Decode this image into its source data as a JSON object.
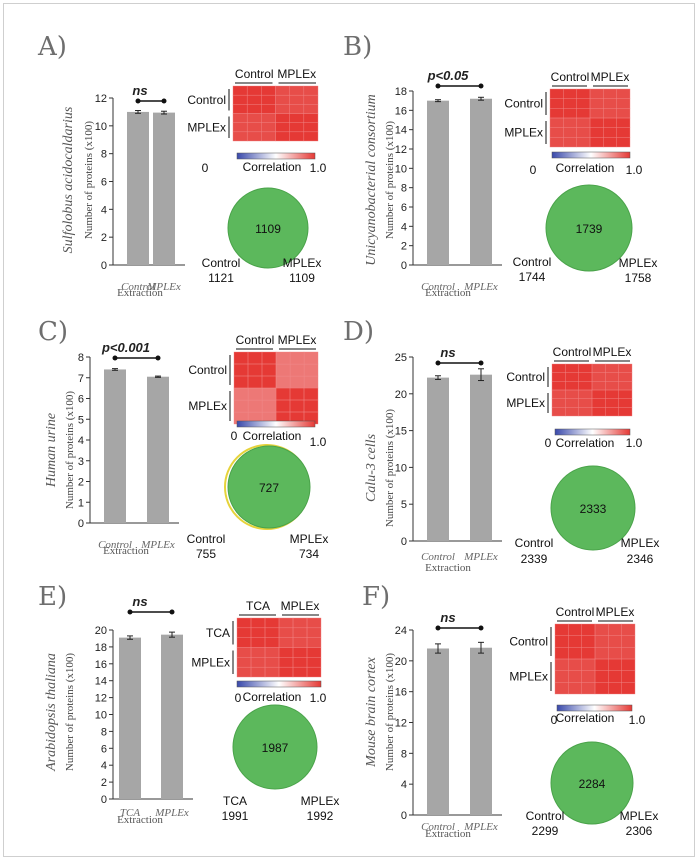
{
  "colors": {
    "bar": "#a6a6a6",
    "venn_fill": "#5cb85c",
    "venn_stroke": "#4aa34a",
    "heat_high": "#e53935",
    "heat_low": "#3949ab"
  },
  "chart_data": [
    {
      "type": "bar",
      "panel": "A)",
      "organism": "Sulfolobus acidocaldarius",
      "ylabel": "Number of proteins (x100)",
      "xlabel": "Extraction",
      "categories": [
        "Control",
        "MPLEx"
      ],
      "values": [
        11.0,
        10.95
      ],
      "errors": [
        0.1,
        0.1
      ],
      "ylim": [
        0,
        12
      ],
      "yticks": [
        "0",
        "2",
        "4",
        "6",
        "8",
        "10",
        "12"
      ],
      "significance": "ns",
      "heatmap": {
        "column_labels": [
          "Control",
          "MPLEx"
        ],
        "row_labels": [
          "Control",
          "MPLEx"
        ],
        "colorbar_min": "0",
        "colorbar_max": "1.0",
        "colorbar_label": "Correlation"
      },
      "venn": {
        "overlap": "1109",
        "left_label": "Control",
        "left_count": "1121",
        "right_label": "MPLEx",
        "right_count": "1109"
      }
    },
    {
      "type": "bar",
      "panel": "B)",
      "organism": "Unicyanobacterial consortium",
      "ylabel": "Number of proteins (x100)",
      "xlabel": "Extraction",
      "categories": [
        "Control",
        "MPLEx"
      ],
      "values": [
        17.0,
        17.2
      ],
      "errors": [
        0.1,
        0.15
      ],
      "ylim": [
        0,
        18
      ],
      "yticks": [
        "0",
        "2",
        "4",
        "6",
        "8",
        "10",
        "12",
        "14",
        "16",
        "18"
      ],
      "significance": "p<0.05",
      "heatmap": {
        "column_labels": [
          "Control",
          "MPLEx"
        ],
        "row_labels": [
          "Control",
          "MPLEx"
        ],
        "colorbar_min": "0",
        "colorbar_max": "1.0",
        "colorbar_label": "Correlation"
      },
      "venn": {
        "overlap": "1739",
        "left_label": "Control",
        "left_count": "1744",
        "right_label": "MPLEx",
        "right_count": "1758"
      }
    },
    {
      "type": "bar",
      "panel": "C)",
      "organism": "Human urine",
      "ylabel": "Number of proteins (x100)",
      "xlabel": "Extraction",
      "categories": [
        "Control",
        "MPLEx"
      ],
      "values": [
        7.4,
        7.05
      ],
      "errors": [
        0.04,
        0.03
      ],
      "ylim": [
        0,
        8
      ],
      "yticks": [
        "0",
        "1",
        "2",
        "3",
        "4",
        "5",
        "6",
        "7",
        "8"
      ],
      "significance": "p<0.001",
      "heatmap": {
        "column_labels": [
          "Control",
          "MPLEx"
        ],
        "row_labels": [
          "Control",
          "MPLEx"
        ],
        "colorbar_min": "0",
        "colorbar_max": "1.0",
        "colorbar_label": "Correlation"
      },
      "venn": {
        "overlap": "727",
        "left_label": "Control",
        "left_count": "755",
        "right_label": "MPLEx",
        "right_count": "734"
      }
    },
    {
      "type": "bar",
      "panel": "D)",
      "organism": "Calu-3 cells",
      "ylabel": "Number of proteins (x100)",
      "xlabel": "Extraction",
      "categories": [
        "Control",
        "MPLEx"
      ],
      "values": [
        22.2,
        22.6
      ],
      "errors": [
        0.25,
        0.8
      ],
      "ylim": [
        0,
        25
      ],
      "yticks": [
        "0",
        "5",
        "10",
        "15",
        "20",
        "25"
      ],
      "significance": "ns",
      "heatmap": {
        "column_labels": [
          "Control",
          "MPLEx"
        ],
        "row_labels": [
          "Control",
          "MPLEx"
        ],
        "colorbar_min": "0",
        "colorbar_max": "1.0",
        "colorbar_label": "Correlation"
      },
      "venn": {
        "overlap": "2333",
        "left_label": "Control",
        "left_count": "2339",
        "right_label": "MPLEx",
        "right_count": "2346"
      }
    },
    {
      "type": "bar",
      "panel": "E)",
      "organism": "Arabidopsis thaliana",
      "ylabel": "Number of proteins (x100)",
      "xlabel": "Extraction",
      "categories": [
        "TCA",
        "MPLEx"
      ],
      "values": [
        19.1,
        19.45
      ],
      "errors": [
        0.2,
        0.3
      ],
      "ylim": [
        0,
        20
      ],
      "yticks": [
        "0",
        "2",
        "4",
        "6",
        "8",
        "10",
        "12",
        "14",
        "16",
        "18",
        "20"
      ],
      "significance": "ns",
      "heatmap": {
        "column_labels": [
          "TCA",
          "MPLEx"
        ],
        "row_labels": [
          "TCA",
          "MPLEx"
        ],
        "colorbar_min": "0",
        "colorbar_max": "1.0",
        "colorbar_label": "Correlation"
      },
      "venn": {
        "overlap": "1987",
        "left_label": "TCA",
        "left_count": "1991",
        "right_label": "MPLEx",
        "right_count": "1992"
      }
    },
    {
      "type": "bar",
      "panel": "F)",
      "organism": "Mouse brain cortex",
      "ylabel": "Number of proteins (x100)",
      "xlabel": "Extraction",
      "categories": [
        "Control",
        "MPLEx"
      ],
      "values": [
        21.6,
        21.7
      ],
      "errors": [
        0.6,
        0.7
      ],
      "ylim": [
        0,
        24
      ],
      "yticks": [
        "0",
        "4",
        "8",
        "12",
        "16",
        "20",
        "24"
      ],
      "significance": "ns",
      "heatmap": {
        "column_labels": [
          "Control",
          "MPLEx"
        ],
        "row_labels": [
          "Control",
          "MPLEx"
        ],
        "colorbar_min": "0",
        "colorbar_max": "1.0",
        "colorbar_label": "Correlation"
      },
      "venn": {
        "overlap": "2284",
        "left_label": "Control",
        "left_count": "2299",
        "right_label": "MPLEx",
        "right_count": "2306"
      }
    }
  ]
}
